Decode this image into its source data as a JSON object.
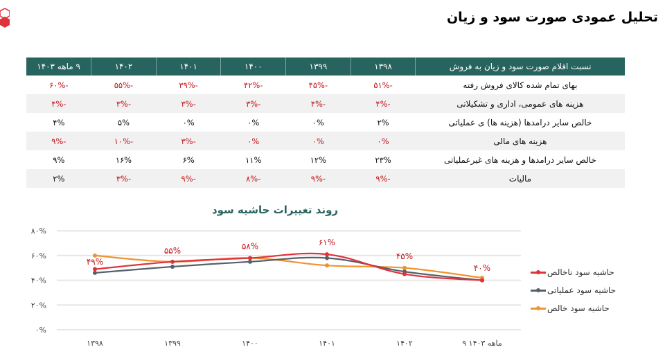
{
  "page": {
    "title": "تحلیل عمودی صورت سود و زیان",
    "logo": "cube-logo-icon",
    "colors": {
      "header_bg": "#27635f",
      "negative": "#c4161c",
      "row_alt": "#f1f1f1",
      "series_gross": "#e0323a",
      "series_operating": "#57606a",
      "series_net": "#f0922e"
    }
  },
  "table": {
    "headers": [
      "نسبت اقلام صورت سود و زیان به فروش",
      "۱۳۹۸",
      "۱۳۹۹",
      "۱۴۰۰",
      "۱۴۰۱",
      "۱۴۰۲",
      "۹ ماهه ۱۴۰۳"
    ],
    "rows": [
      {
        "label": "بهای تمام شده کالای فروش رفته",
        "values": [
          "-۵۱%",
          "-۴۵%",
          "-۴۲%",
          "-۳۹%",
          "-۵۵%",
          "-۶۰%"
        ],
        "neg": [
          true,
          true,
          true,
          true,
          true,
          true
        ]
      },
      {
        "label": "هزینه های عمومی، اداری و تشکیلاتی",
        "values": [
          "-۴%",
          "-۴%",
          "-۳%",
          "-۳%",
          "-۳%",
          "-۴%"
        ],
        "neg": [
          true,
          true,
          true,
          true,
          true,
          true
        ]
      },
      {
        "label": "خالص سایر درامدها (هزینه ها) ی عملیاتی",
        "values": [
          "۲%",
          "۰%",
          "۰%",
          "۰%",
          "۵%",
          "۴%"
        ],
        "neg": [
          false,
          false,
          false,
          false,
          false,
          false
        ]
      },
      {
        "label": "هزینه های مالی",
        "values": [
          "۰%",
          "۰%",
          "۰%",
          "-۳%",
          "-۱۰%",
          "-۹%"
        ],
        "neg": [
          true,
          true,
          true,
          true,
          true,
          true
        ]
      },
      {
        "label": "خالص سایر درامدها و هزینه های غیرعملیاتی",
        "values": [
          "۲۳%",
          "۱۲%",
          "۱۱%",
          "۶%",
          "۱۶%",
          "۹%"
        ],
        "neg": [
          false,
          false,
          false,
          false,
          false,
          false
        ]
      },
      {
        "label": "مالیات",
        "values": [
          "-۹%",
          "-۹%",
          "-۸%",
          "-۹%",
          "-۳%",
          "۲%"
        ],
        "neg": [
          true,
          true,
          true,
          true,
          true,
          false
        ]
      }
    ]
  },
  "chart_data": {
    "type": "line",
    "title": "روند تغییرات حاشیه سود",
    "xlabel": "",
    "ylabel": "",
    "categories": [
      "۱۳۹۸",
      "۱۳۹۹",
      "۱۴۰۰",
      "۱۴۰۱",
      "۱۴۰۲",
      "۹ ماهه ۱۴۰۳"
    ],
    "y_ticks": [
      "۰%",
      "۲۰%",
      "۴۰%",
      "۶۰%",
      "۸۰%"
    ],
    "ylim": [
      0,
      80
    ],
    "grid": true,
    "legend_position": "right",
    "series": [
      {
        "name": "حاشیه سود ناخالص",
        "color": "#e0323a",
        "values": [
          49,
          55,
          58,
          61,
          45,
          40
        ],
        "data_labels": [
          "۴۹%",
          "۵۵%",
          "۵۸%",
          "۶۱%",
          "۴۵%",
          "۴۰%"
        ]
      },
      {
        "name": "حاشیه سود عملیاتی",
        "color": "#57606a",
        "values": [
          46,
          51,
          55,
          58,
          47,
          40
        ]
      },
      {
        "name": "حاشیه سود خالص",
        "color": "#f0922e",
        "values": [
          60,
          55,
          58,
          52,
          50,
          42
        ]
      }
    ]
  }
}
